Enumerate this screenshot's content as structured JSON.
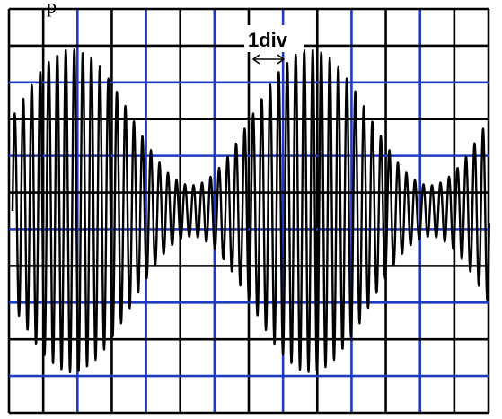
{
  "top_text_fragment": "p",
  "scale_label": "1div",
  "colors": {
    "grid_major": "#000000",
    "grid_minor": "#1f3bbf",
    "waveform": "#000000",
    "background": "#ffffff",
    "watermark": "#c9c9c9"
  },
  "grid": {
    "columns": 14,
    "rows": 11,
    "blue_vertical_every": 2,
    "blue_horizontal_every": 2
  },
  "waveform": {
    "type": "amplitude-modulated sine",
    "envelope_cycles_visible": 2,
    "carrier_cycles_per_envelope": 28,
    "max_amplitude_div": 4.4,
    "min_amplitude_div": 0.7
  },
  "icons": {
    "scale_arrow": "double-headed-arrow-icon"
  }
}
